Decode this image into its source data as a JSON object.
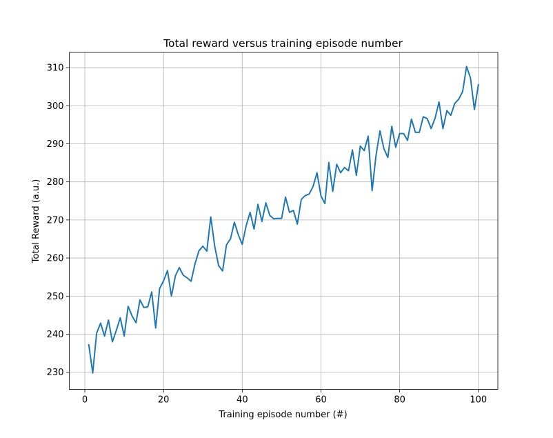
{
  "chart_data": {
    "type": "line",
    "title": "Total reward versus training episode number",
    "xlabel": "Training episode number (#)",
    "ylabel": "Total Reward (a.u.)",
    "xlim": [
      -3.95,
      104.95
    ],
    "ylim": [
      225.5,
      314.0
    ],
    "xticks": [
      0,
      20,
      40,
      60,
      80,
      100
    ],
    "yticks": [
      230,
      240,
      250,
      260,
      270,
      280,
      290,
      300,
      310
    ],
    "grid": true,
    "line_color": "#1f77b4",
    "x": [
      1,
      2,
      3,
      4,
      5,
      6,
      7,
      8,
      9,
      10,
      11,
      12,
      13,
      14,
      15,
      16,
      17,
      18,
      19,
      20,
      21,
      22,
      23,
      24,
      25,
      26,
      27,
      28,
      29,
      30,
      31,
      32,
      33,
      34,
      35,
      36,
      37,
      38,
      39,
      40,
      41,
      42,
      43,
      44,
      45,
      46,
      47,
      48,
      49,
      50,
      51,
      52,
      53,
      54,
      55,
      56,
      57,
      58,
      59,
      60,
      61,
      62,
      63,
      64,
      65,
      66,
      67,
      68,
      69,
      70,
      71,
      72,
      73,
      74,
      75,
      76,
      77,
      78,
      79,
      80,
      81,
      82,
      83,
      84,
      85,
      86,
      87,
      88,
      89,
      90,
      91,
      92,
      93,
      94,
      95,
      96,
      97,
      98,
      99,
      100
    ],
    "values": [
      237.2,
      229.8,
      240.3,
      242.9,
      239.5,
      243.7,
      238.0,
      241.0,
      244.3,
      239.5,
      247.3,
      244.8,
      243.0,
      249.0,
      247.0,
      247.2,
      251.1,
      241.6,
      252.0,
      254.0,
      256.7,
      250.0,
      255.3,
      257.5,
      255.5,
      254.8,
      253.9,
      258.5,
      261.9,
      263.1,
      261.8,
      270.8,
      263.1,
      258.0,
      256.6,
      263.5,
      265.0,
      269.4,
      266.1,
      263.6,
      268.5,
      272.0,
      267.6,
      274.1,
      269.6,
      274.5,
      271.2,
      270.3,
      270.4,
      270.4,
      276.0,
      272.0,
      272.5,
      268.9,
      275.4,
      276.4,
      276.8,
      278.8,
      282.4,
      276.3,
      274.3,
      285.1,
      277.5,
      284.6,
      282.4,
      283.8,
      282.9,
      288.4,
      281.7,
      289.4,
      288.2,
      292.0,
      277.7,
      287.0,
      293.4,
      288.7,
      286.4,
      294.6,
      289.1,
      292.7,
      292.7,
      290.9,
      296.5,
      293.0,
      293.0,
      297.1,
      296.6,
      294.0,
      296.7,
      301.0,
      294.0,
      298.7,
      297.5,
      300.6,
      301.7,
      303.7,
      310.3,
      307.3,
      299.0,
      305.5
    ]
  }
}
